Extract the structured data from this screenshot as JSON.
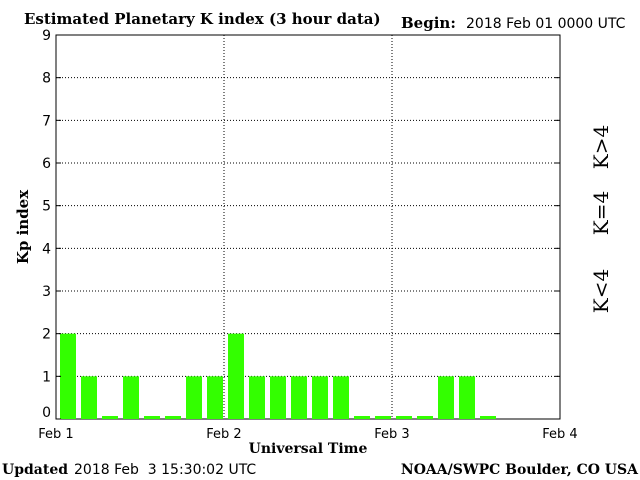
{
  "header": {
    "title": "Estimated Planetary K index (3 hour data)",
    "begin_label": "Begin:",
    "begin_value": "2018 Feb 01 0000 UTC"
  },
  "footer": {
    "updated_label": "Updated",
    "updated_value": "2018 Feb  3 15:30:02 UTC",
    "source": "NOAA/SWPC Boulder, CO USA"
  },
  "legend": {
    "items": [
      {
        "label": "K<4",
        "color": "#33ff00"
      },
      {
        "label": "K=4",
        "color": "#ffcc00"
      },
      {
        "label": "K>4",
        "color": "#ff3300"
      }
    ]
  },
  "colors": {
    "low": "#33ff00",
    "moderate": "#ffcc00",
    "storm": "#ff3300"
  },
  "chart_data": {
    "type": "bar",
    "title": "Estimated Planetary K index (3 hour data)",
    "xlabel": "Universal Time",
    "ylabel": "Kp index",
    "ylim": [
      0,
      9
    ],
    "yticks": [
      "0",
      "1",
      "2",
      "3",
      "4",
      "5",
      "6",
      "7",
      "8",
      "9"
    ],
    "xticks": [
      "Feb 1",
      "Feb 2",
      "Feb 3",
      "Feb 4"
    ],
    "grid": true,
    "bars_per_day": 8,
    "values": [
      2,
      1,
      0,
      1,
      0,
      0,
      1,
      1,
      2,
      1,
      1,
      1,
      1,
      1,
      0,
      0,
      0,
      0,
      1,
      1,
      0
    ]
  }
}
